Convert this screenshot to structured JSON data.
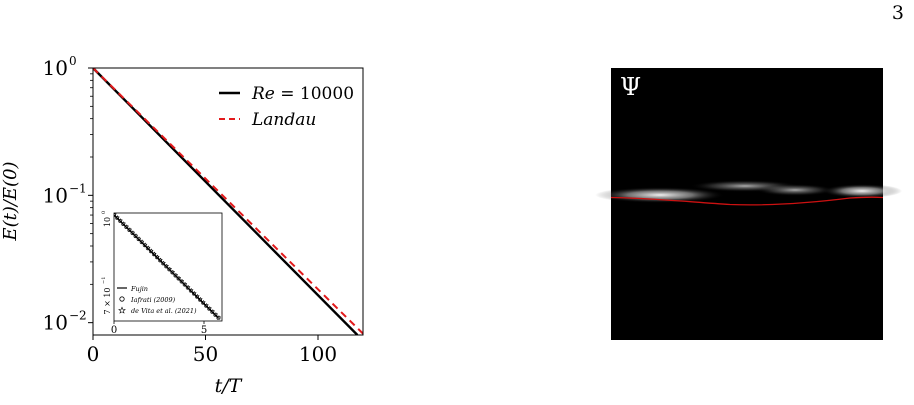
{
  "page_number": "3",
  "colors": {
    "re_line": "#000000",
    "landau_line": "#e31a1c",
    "interface_line": "#cc1111",
    "field_bg": "#000000"
  },
  "chart_data": [
    {
      "type": "line",
      "title": "",
      "xlabel": "t/T",
      "ylabel": "E(t)/E(0)",
      "xlim": [
        0,
        120
      ],
      "ylim": [
        0.008,
        1.0
      ],
      "yscale": "log",
      "xticks": [
        0,
        50,
        100
      ],
      "xtick_labels": [
        "0",
        "50",
        "100"
      ],
      "yticks": [
        1,
        0.1,
        0.01
      ],
      "ytick_labels": [
        "10",
        "10",
        "10"
      ],
      "ytick_exponents": [
        "0",
        "−1",
        "−2"
      ],
      "grid": false,
      "legend_position": "top-right",
      "series": [
        {
          "name": "Re = 10000",
          "name_lhs": "Re",
          "name_rhs": " = 10000",
          "style": "solid",
          "color": "#000000",
          "x": [
            0,
            117.5
          ],
          "y": [
            1.0,
            0.008
          ]
        },
        {
          "name": "Landau",
          "style": "dashed",
          "color": "#e31a1c",
          "x": [
            0,
            120
          ],
          "y": [
            1.0,
            0.0082
          ]
        }
      ]
    },
    {
      "type": "line",
      "title": "",
      "inset": true,
      "xlim": [
        0,
        6
      ],
      "yscale": "log",
      "xticks": [
        0,
        5
      ],
      "xtick_labels": [
        "0",
        "5"
      ],
      "ytick_labels": [
        "10",
        "7 × 10"
      ],
      "ytick_exponents": [
        "0",
        "−1"
      ],
      "legend_position": "bottom-left",
      "series": [
        {
          "name": "Fujin",
          "marker": "line",
          "x": [
            0,
            5.8
          ],
          "y": [
            1.0,
            0.7
          ]
        },
        {
          "name": "Iafrati (2009)",
          "marker": "circle",
          "x": [
            0,
            5.8
          ],
          "y": [
            1.0,
            0.7
          ]
        },
        {
          "name": "de Vita et al. (2021)",
          "marker": "star",
          "x": [
            0,
            5.8
          ],
          "y": [
            1.0,
            0.7
          ]
        }
      ]
    }
  ],
  "field_panel": {
    "label": "Ψ"
  }
}
